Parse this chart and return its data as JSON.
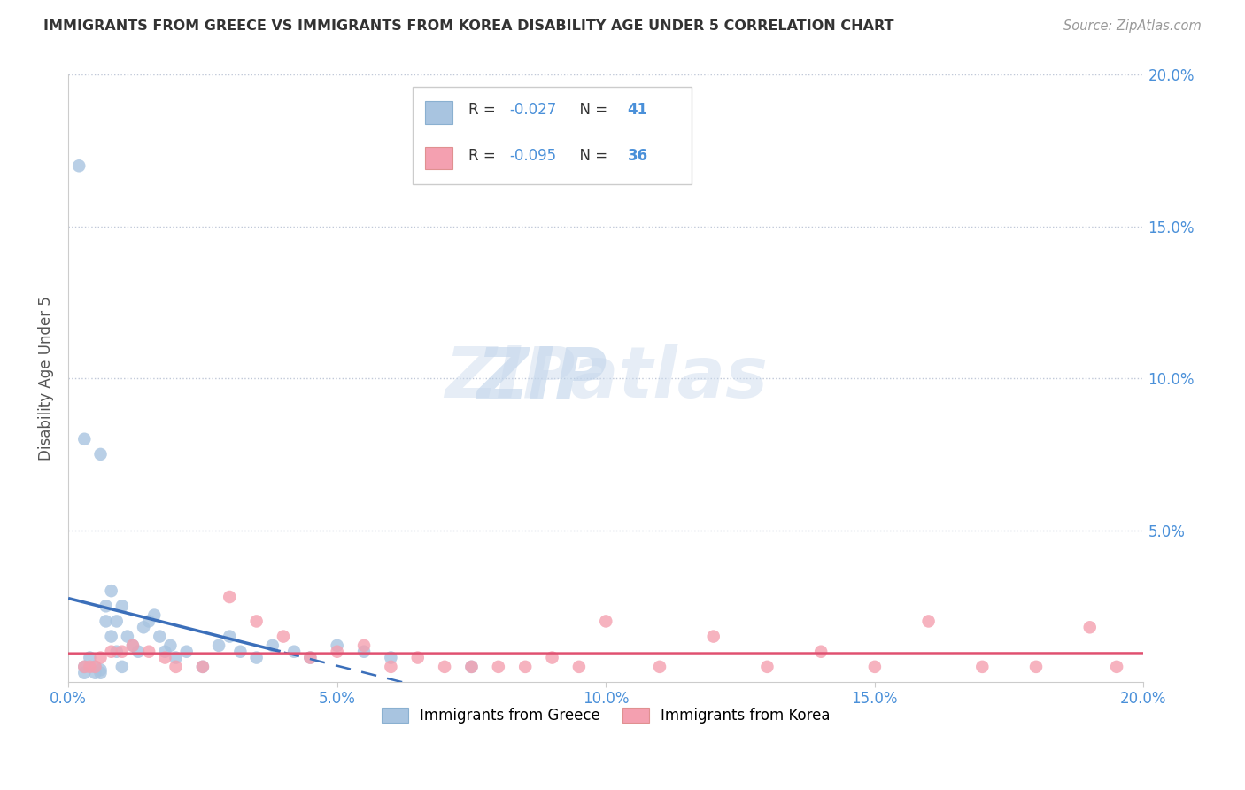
{
  "title": "IMMIGRANTS FROM GREECE VS IMMIGRANTS FROM KOREA DISABILITY AGE UNDER 5 CORRELATION CHART",
  "source": "Source: ZipAtlas.com",
  "ylabel": "Disability Age Under 5",
  "xlim": [
    0.0,
    0.2
  ],
  "ylim": [
    0.0,
    0.2
  ],
  "xticks": [
    0.0,
    0.05,
    0.1,
    0.15,
    0.2
  ],
  "yticks": [
    0.05,
    0.1,
    0.15,
    0.2
  ],
  "xticklabels": [
    "0.0%",
    "5.0%",
    "10.0%",
    "15.0%",
    "20.0%"
  ],
  "yticklabels": [
    "5.0%",
    "10.0%",
    "15.0%",
    "20.0%"
  ],
  "greece_color": "#a8c4e0",
  "korea_color": "#f4a0b0",
  "greece_line_color": "#3b6fba",
  "korea_line_color": "#e05070",
  "greece_R": "-0.027",
  "greece_N": "41",
  "korea_R": "-0.095",
  "korea_N": "36",
  "watermark_zip": "ZIP",
  "watermark_atlas": "atlas",
  "greece_x": [
    0.002,
    0.003,
    0.003,
    0.004,
    0.005,
    0.005,
    0.006,
    0.006,
    0.007,
    0.007,
    0.008,
    0.008,
    0.009,
    0.009,
    0.01,
    0.01,
    0.011,
    0.012,
    0.013,
    0.014,
    0.015,
    0.016,
    0.017,
    0.018,
    0.019,
    0.02,
    0.022,
    0.025,
    0.028,
    0.03,
    0.032,
    0.035,
    0.038,
    0.042,
    0.045,
    0.05,
    0.055,
    0.06,
    0.003,
    0.006,
    0.075
  ],
  "greece_y": [
    0.17,
    0.003,
    0.005,
    0.008,
    0.003,
    0.005,
    0.004,
    0.003,
    0.02,
    0.025,
    0.03,
    0.015,
    0.01,
    0.02,
    0.025,
    0.005,
    0.015,
    0.012,
    0.01,
    0.018,
    0.02,
    0.022,
    0.015,
    0.01,
    0.012,
    0.008,
    0.01,
    0.005,
    0.012,
    0.015,
    0.01,
    0.008,
    0.012,
    0.01,
    0.008,
    0.012,
    0.01,
    0.008,
    0.08,
    0.075,
    0.005
  ],
  "korea_x": [
    0.003,
    0.004,
    0.006,
    0.008,
    0.01,
    0.012,
    0.015,
    0.018,
    0.02,
    0.025,
    0.03,
    0.035,
    0.04,
    0.045,
    0.05,
    0.055,
    0.06,
    0.065,
    0.07,
    0.075,
    0.08,
    0.085,
    0.09,
    0.095,
    0.1,
    0.11,
    0.12,
    0.13,
    0.14,
    0.15,
    0.16,
    0.17,
    0.18,
    0.19,
    0.195,
    0.005
  ],
  "korea_y": [
    0.005,
    0.005,
    0.008,
    0.01,
    0.01,
    0.012,
    0.01,
    0.008,
    0.005,
    0.005,
    0.028,
    0.02,
    0.015,
    0.008,
    0.01,
    0.012,
    0.005,
    0.008,
    0.005,
    0.005,
    0.005,
    0.005,
    0.008,
    0.005,
    0.02,
    0.005,
    0.015,
    0.005,
    0.01,
    0.005,
    0.02,
    0.005,
    0.005,
    0.018,
    0.005,
    0.005
  ]
}
